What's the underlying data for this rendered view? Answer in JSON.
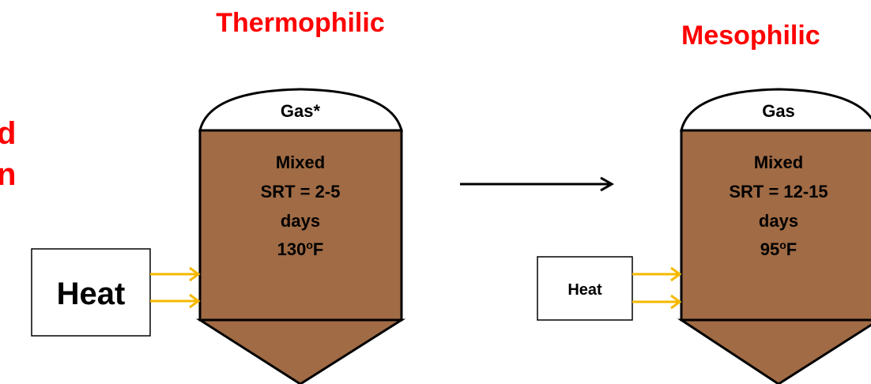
{
  "left_text": [
    "d",
    "n"
  ],
  "stages": [
    {
      "title": "Thermophilic",
      "gas": "Gas*",
      "mix": "Mixed",
      "srt": "SRT = 2-5",
      "days": "days",
      "temp": {
        "number": "130",
        "sup": "o",
        "unit": "F"
      },
      "heat": "Heat"
    },
    {
      "title": "Mesophilic",
      "gas": "Gas",
      "mix": "Mixed",
      "srt": "SRT = 12-15",
      "days": "days",
      "temp": {
        "number": "95",
        "sup": "o",
        "unit": "F"
      },
      "heat": "Heat"
    }
  ]
}
